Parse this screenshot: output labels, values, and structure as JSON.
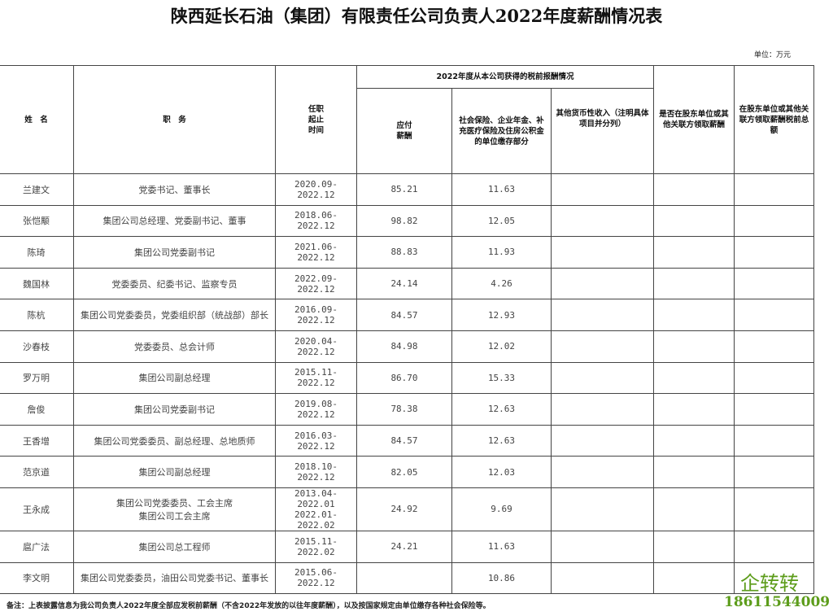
{
  "title": "陕西延长石油（集团）有限责任公司负责人2022年度薪酬情况表",
  "unit": "单位：万元",
  "headers": {
    "name": "姓　名",
    "position": "职　务",
    "term": "任职\n起止\n时间",
    "group": "2022年度从本公司获得的税前报酬情况",
    "salary": "应付\n薪酬",
    "insurance": "社会保险、企业年金、补充医疗保险及住房公积金的单位缴存部分",
    "other": "其他货币性收入（注明具体项目并分列）",
    "related": "是否在股东单位或其他关联方领取薪酬",
    "related_total": "在股东单位或其他关联方领取薪酬税前总额"
  },
  "rows": [
    {
      "name": "兰建文",
      "position": "党委书记、董事长",
      "term": "2020.09-2022.12",
      "salary": "85.21",
      "insurance": "11.63"
    },
    {
      "name": "张恺颙",
      "position": "集团公司总经理、党委副书记、董事",
      "term": "2018.06-2022.12",
      "salary": "98.82",
      "insurance": "12.05"
    },
    {
      "name": "陈琦",
      "position": "集团公司党委副书记",
      "term": "2021.06-2022.12",
      "salary": "88.83",
      "insurance": "11.93"
    },
    {
      "name": "魏国林",
      "position": "党委委员、纪委书记、监察专员",
      "term": "2022.09-2022.12",
      "salary": "24.14",
      "insurance": "4.26"
    },
    {
      "name": "陈杭",
      "position": "集团公司党委委员，党委组织部（统战部）部长",
      "term": "2016.09-2022.12",
      "salary": "84.57",
      "insurance": "12.93"
    },
    {
      "name": "沙春枝",
      "position": "党委委员、总会计师",
      "term": "2020.04-2022.12",
      "salary": "84.98",
      "insurance": "12.02"
    },
    {
      "name": "罗万明",
      "position": "集团公司副总经理",
      "term": "2015.11-2022.12",
      "salary": "86.70",
      "insurance": "15.33"
    },
    {
      "name": "詹俊",
      "position": "集团公司党委副书记",
      "term": "2019.08-2022.12",
      "salary": "78.38",
      "insurance": "12.63"
    },
    {
      "name": "王香增",
      "position": "集团公司党委委员、副总经理、总地质师",
      "term": "2016.03-2022.12",
      "salary": "84.57",
      "insurance": "12.63"
    },
    {
      "name": "范京道",
      "position": "集团公司副总经理",
      "term": "2018.10-2022.12",
      "salary": "82.05",
      "insurance": "12.03"
    },
    {
      "name": "王永成",
      "position": "集团公司党委委员、工会主席\n集团公司工会主席",
      "term": "2013.04-2022.01\n2022.01-2022.02",
      "salary": "24.92",
      "insurance": "9.69"
    },
    {
      "name": "扈广法",
      "position": "集团公司总工程师",
      "term": "2015.11-2022.02",
      "salary": "24.21",
      "insurance": "11.63"
    },
    {
      "name": "李文明",
      "position": "集团公司党委委员，油田公司党委书记、董事长",
      "term": "2015.06-2022.12",
      "salary": "",
      "insurance": "10.86"
    }
  ],
  "note": "备注：上表披露信息为我公司负责人2022年度全部应发税前薪酬（不含2022年发放的以往年度薪酬），以及按国家规定由单位缴存各种社会保险等。",
  "watermark": {
    "brand": "企转转",
    "phone": "18611544009",
    "color": "#5c9c1a"
  }
}
